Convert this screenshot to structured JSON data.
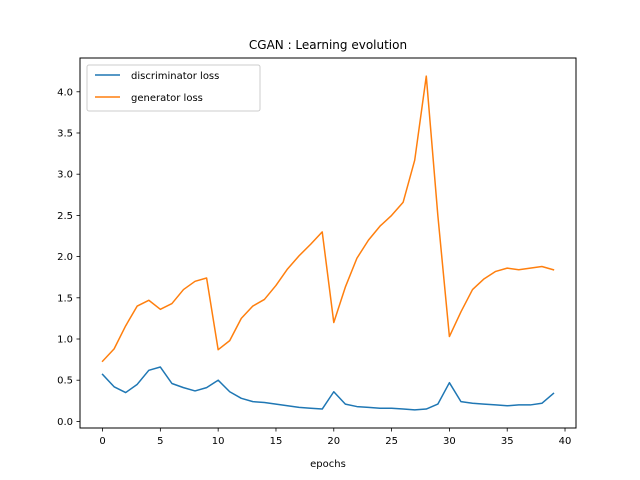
{
  "chart_data": {
    "type": "line",
    "title": "CGAN : Learning evolution",
    "xlabel": "epochs",
    "ylabel": "",
    "xlim": [
      -1.95,
      40.95
    ],
    "ylim": [
      -0.08,
      4.41
    ],
    "xticks": [
      0,
      5,
      10,
      15,
      20,
      25,
      30,
      35,
      40
    ],
    "yticks": [
      0.0,
      0.5,
      1.0,
      1.5,
      2.0,
      2.5,
      3.0,
      3.5,
      4.0
    ],
    "ytick_labels": [
      "0.0",
      "0.5",
      "1.0",
      "1.5",
      "2.0",
      "2.5",
      "3.0",
      "3.5",
      "4.0"
    ],
    "grid": false,
    "legend_position": "top-left",
    "x": [
      0,
      1,
      2,
      3,
      4,
      5,
      6,
      7,
      8,
      9,
      10,
      11,
      12,
      13,
      14,
      15,
      16,
      17,
      18,
      19,
      20,
      21,
      22,
      23,
      24,
      25,
      26,
      27,
      28,
      29,
      30,
      31,
      32,
      33,
      34,
      35,
      36,
      37,
      38,
      39
    ],
    "series": [
      {
        "name": "discriminator loss",
        "color": "#1f77b4",
        "values": [
          0.57,
          0.42,
          0.35,
          0.45,
          0.62,
          0.66,
          0.46,
          0.41,
          0.37,
          0.41,
          0.5,
          0.36,
          0.28,
          0.24,
          0.23,
          0.21,
          0.19,
          0.17,
          0.16,
          0.15,
          0.36,
          0.21,
          0.18,
          0.17,
          0.16,
          0.16,
          0.15,
          0.14,
          0.15,
          0.21,
          0.47,
          0.24,
          0.22,
          0.21,
          0.2,
          0.19,
          0.2,
          0.2,
          0.22,
          0.34
        ]
      },
      {
        "name": "generator loss",
        "color": "#ff7f0e",
        "values": [
          0.73,
          0.88,
          1.16,
          1.4,
          1.47,
          1.36,
          1.43,
          1.6,
          1.7,
          1.74,
          0.87,
          0.98,
          1.25,
          1.4,
          1.48,
          1.65,
          1.85,
          2.01,
          2.15,
          2.3,
          1.2,
          1.63,
          1.98,
          2.2,
          2.37,
          2.5,
          2.66,
          3.17,
          4.19,
          2.5,
          1.03,
          1.33,
          1.6,
          1.73,
          1.82,
          1.86,
          1.84,
          1.86,
          1.88,
          1.84
        ]
      }
    ]
  }
}
